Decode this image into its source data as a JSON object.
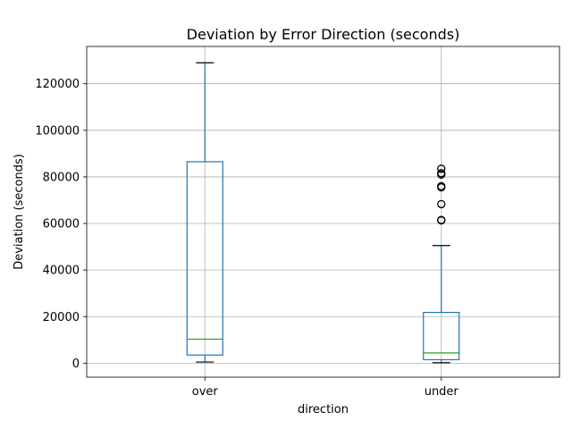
{
  "chart_data": {
    "type": "box",
    "title": "Deviation by Error Direction (seconds)",
    "xlabel": "direction",
    "ylabel": "Deviation (seconds)",
    "categories": [
      "over",
      "under"
    ],
    "ylim": [
      -6000,
      136000
    ],
    "yticks": [
      0,
      20000,
      40000,
      60000,
      80000,
      100000,
      120000
    ],
    "grid": true,
    "colors": {
      "box": "#1f77b4",
      "median": "#2ca02c",
      "flier": "#000000",
      "cap": "#000000"
    },
    "boxes": [
      {
        "category": "over",
        "whisker_low": 500,
        "q1": 3500,
        "median": 10300,
        "q3": 86500,
        "whisker_high": 129000,
        "outliers": []
      },
      {
        "category": "under",
        "whisker_low": 200,
        "q1": 1500,
        "median": 4400,
        "q3": 21800,
        "whisker_high": 50500,
        "outliers": [
          61300,
          61500,
          68300,
          75500,
          76000,
          81000,
          81600,
          83500
        ]
      }
    ]
  }
}
